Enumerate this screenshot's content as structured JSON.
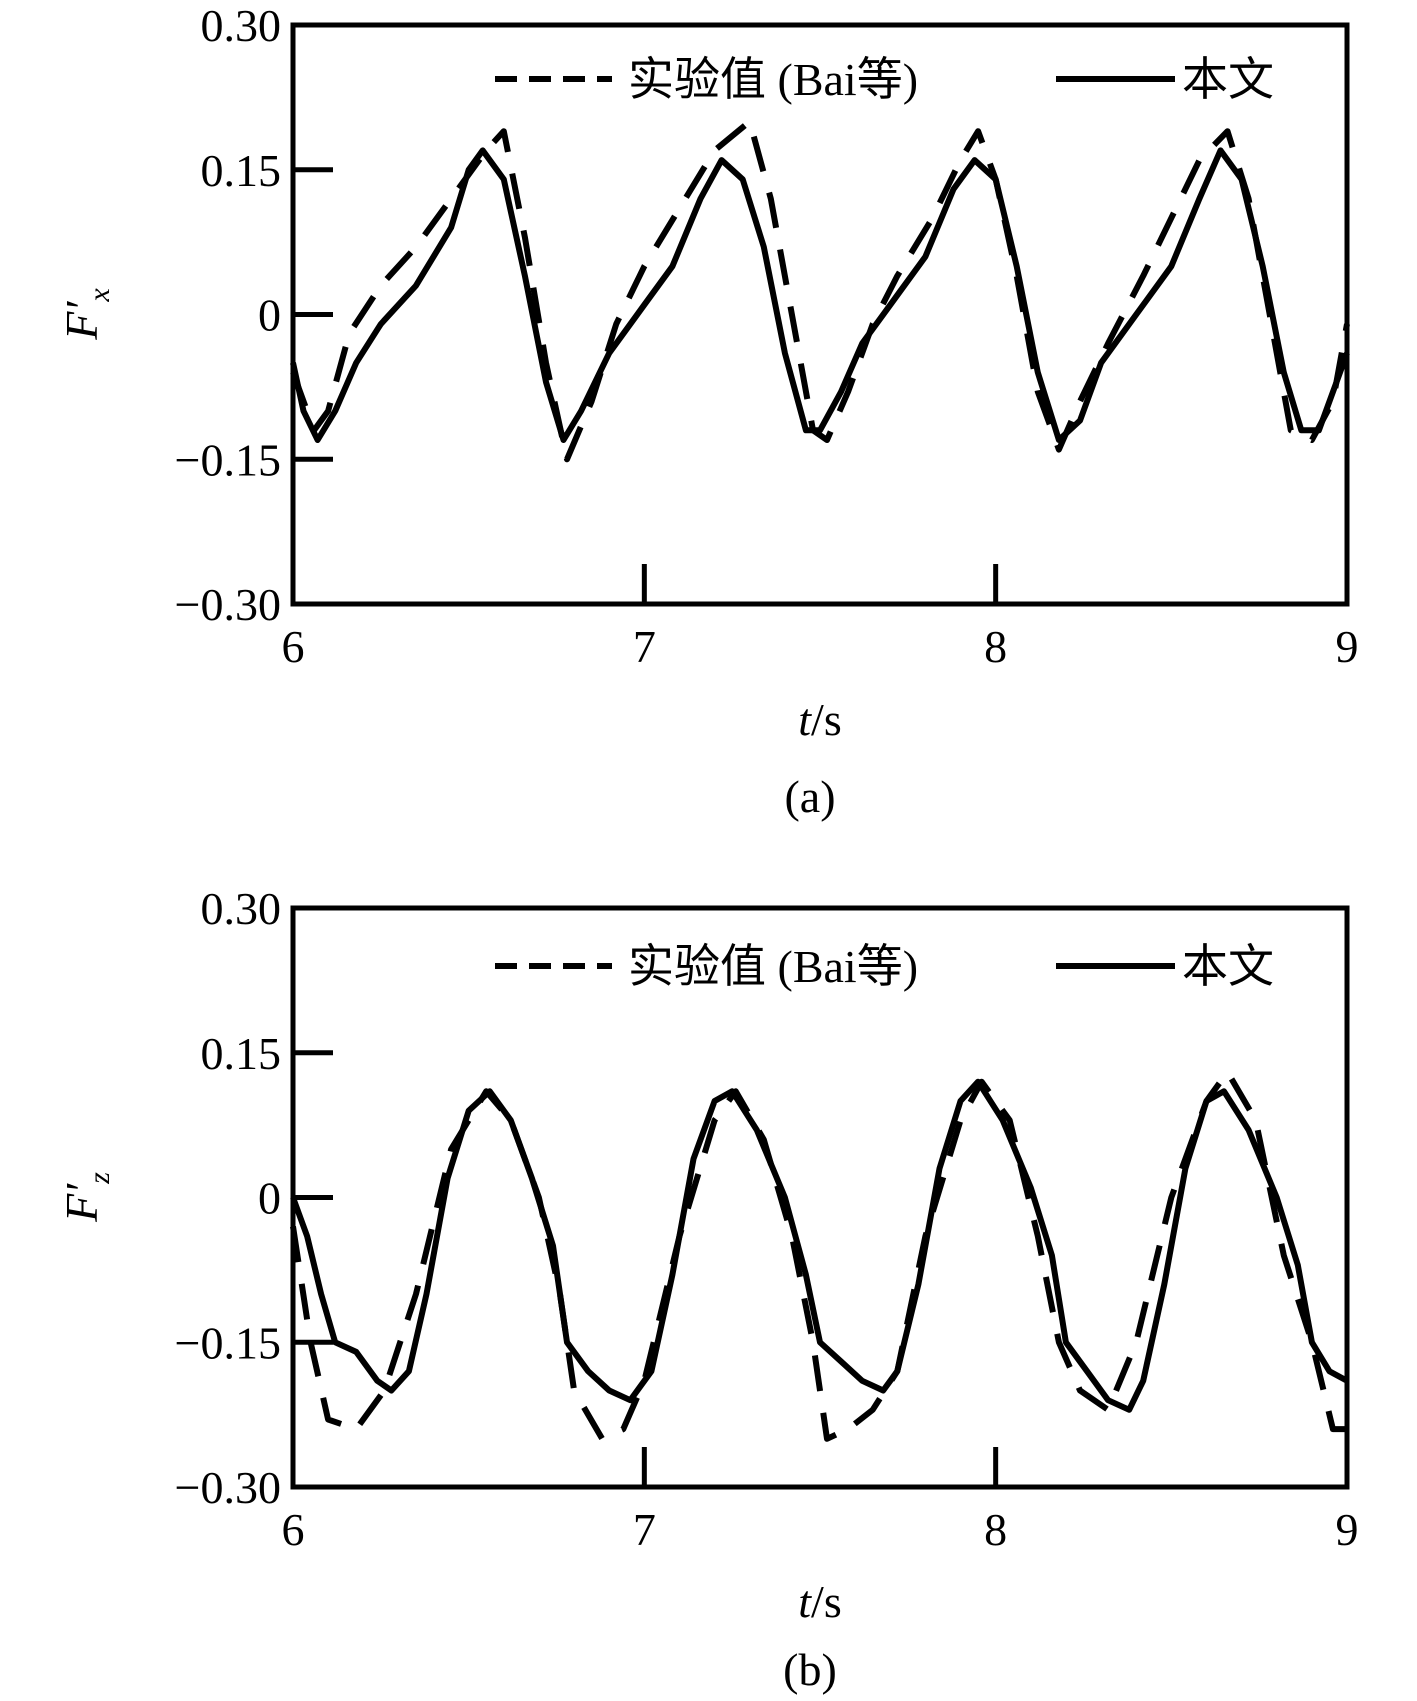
{
  "legend": {
    "experimental": "实验值 (Bai等)",
    "present": "本文"
  },
  "charts": [
    {
      "caption": "(a)",
      "ylabel_main": "F′",
      "ylabel_sub": "x",
      "xlabel_italic": "t",
      "xlabel_unit": "/s"
    },
    {
      "caption": "(b)",
      "ylabel_main": "F′",
      "ylabel_sub": "z",
      "xlabel_italic": "t",
      "xlabel_unit": "/s"
    }
  ],
  "chart_data": [
    {
      "type": "line",
      "panel": "a",
      "xlim": [
        6,
        9
      ],
      "ylim": [
        -0.3,
        0.3
      ],
      "xticks": [
        6,
        7,
        8,
        9
      ],
      "yticks": [
        -0.3,
        -0.15,
        0,
        0.15,
        0.3
      ],
      "xtick_labels": [
        "6",
        "7",
        "8",
        "9"
      ],
      "ytick_labels": [
        "−0.30",
        "−0.15",
        "0",
        "0.15",
        "0.30"
      ],
      "grid": false,
      "legend_position": "top-right",
      "series": [
        {
          "name": "实验值 (Bai等)",
          "style": "dashed",
          "points": [
            [
              6.0,
              -0.06
            ],
            [
              6.06,
              -0.12
            ],
            [
              6.1,
              -0.1
            ],
            [
              6.16,
              -0.02
            ],
            [
              6.25,
              0.03
            ],
            [
              6.35,
              0.07
            ],
            [
              6.45,
              0.12
            ],
            [
              6.55,
              0.17
            ],
            [
              6.6,
              0.19
            ],
            [
              6.66,
              0.08
            ],
            [
              6.72,
              -0.05
            ],
            [
              6.78,
              -0.15
            ],
            [
              6.85,
              -0.09
            ],
            [
              6.92,
              -0.01
            ],
            [
              7.0,
              0.05
            ],
            [
              7.1,
              0.11
            ],
            [
              7.2,
              0.17
            ],
            [
              7.3,
              0.2
            ],
            [
              7.36,
              0.12
            ],
            [
              7.42,
              0.0
            ],
            [
              7.48,
              -0.12
            ],
            [
              7.52,
              -0.13
            ],
            [
              7.58,
              -0.08
            ],
            [
              7.65,
              -0.01
            ],
            [
              7.72,
              0.04
            ],
            [
              7.82,
              0.1
            ],
            [
              7.9,
              0.16
            ],
            [
              7.95,
              0.19
            ],
            [
              8.0,
              0.14
            ],
            [
              8.06,
              0.04
            ],
            [
              8.12,
              -0.08
            ],
            [
              8.18,
              -0.14
            ],
            [
              8.24,
              -0.09
            ],
            [
              8.32,
              -0.03
            ],
            [
              8.42,
              0.04
            ],
            [
              8.5,
              0.1
            ],
            [
              8.58,
              0.16
            ],
            [
              8.66,
              0.19
            ],
            [
              8.72,
              0.12
            ],
            [
              8.78,
              0.0
            ],
            [
              8.84,
              -0.12
            ],
            [
              8.9,
              -0.13
            ],
            [
              8.96,
              -0.09
            ],
            [
              9.0,
              -0.01
            ]
          ]
        },
        {
          "name": "本文",
          "style": "solid",
          "points": [
            [
              6.0,
              -0.05
            ],
            [
              6.03,
              -0.1
            ],
            [
              6.07,
              -0.13
            ],
            [
              6.12,
              -0.1
            ],
            [
              6.18,
              -0.05
            ],
            [
              6.25,
              -0.01
            ],
            [
              6.35,
              0.03
            ],
            [
              6.45,
              0.09
            ],
            [
              6.5,
              0.15
            ],
            [
              6.54,
              0.17
            ],
            [
              6.6,
              0.14
            ],
            [
              6.66,
              0.04
            ],
            [
              6.72,
              -0.07
            ],
            [
              6.77,
              -0.13
            ],
            [
              6.82,
              -0.1
            ],
            [
              6.9,
              -0.04
            ],
            [
              7.0,
              0.01
            ],
            [
              7.08,
              0.05
            ],
            [
              7.16,
              0.12
            ],
            [
              7.22,
              0.16
            ],
            [
              7.28,
              0.14
            ],
            [
              7.34,
              0.07
            ],
            [
              7.4,
              -0.04
            ],
            [
              7.46,
              -0.12
            ],
            [
              7.5,
              -0.12
            ],
            [
              7.56,
              -0.08
            ],
            [
              7.62,
              -0.03
            ],
            [
              7.72,
              0.02
            ],
            [
              7.8,
              0.06
            ],
            [
              7.88,
              0.13
            ],
            [
              7.94,
              0.16
            ],
            [
              8.0,
              0.14
            ],
            [
              8.06,
              0.05
            ],
            [
              8.12,
              -0.06
            ],
            [
              8.18,
              -0.13
            ],
            [
              8.24,
              -0.11
            ],
            [
              8.3,
              -0.05
            ],
            [
              8.4,
              0.0
            ],
            [
              8.5,
              0.05
            ],
            [
              8.58,
              0.12
            ],
            [
              8.64,
              0.17
            ],
            [
              8.7,
              0.14
            ],
            [
              8.76,
              0.05
            ],
            [
              8.82,
              -0.06
            ],
            [
              8.87,
              -0.12
            ],
            [
              8.92,
              -0.12
            ],
            [
              8.97,
              -0.07
            ],
            [
              9.0,
              -0.04
            ]
          ]
        }
      ]
    },
    {
      "type": "line",
      "panel": "b",
      "xlim": [
        6,
        9
      ],
      "ylim": [
        -0.3,
        0.3
      ],
      "xticks": [
        6,
        7,
        8,
        9
      ],
      "yticks": [
        -0.3,
        -0.15,
        0,
        0.15,
        0.3
      ],
      "xtick_labels": [
        "6",
        "7",
        "8",
        "9"
      ],
      "ytick_labels": [
        "−0.30",
        "−0.15",
        "0",
        "0.15",
        "0.30"
      ],
      "grid": false,
      "legend_position": "top-right",
      "series": [
        {
          "name": "实验值 (Bai等)",
          "style": "dashed",
          "points": [
            [
              6.0,
              -0.03
            ],
            [
              6.05,
              -0.15
            ],
            [
              6.1,
              -0.23
            ],
            [
              6.18,
              -0.24
            ],
            [
              6.26,
              -0.2
            ],
            [
              6.35,
              -0.1
            ],
            [
              6.45,
              0.05
            ],
            [
              6.55,
              0.11
            ],
            [
              6.62,
              0.08
            ],
            [
              6.7,
              0.0
            ],
            [
              6.76,
              -0.1
            ],
            [
              6.8,
              -0.2
            ],
            [
              6.88,
              -0.25
            ],
            [
              6.94,
              -0.24
            ],
            [
              7.0,
              -0.19
            ],
            [
              7.1,
              -0.04
            ],
            [
              7.2,
              0.08
            ],
            [
              7.26,
              0.11
            ],
            [
              7.34,
              0.06
            ],
            [
              7.42,
              -0.04
            ],
            [
              7.48,
              -0.15
            ],
            [
              7.52,
              -0.25
            ],
            [
              7.58,
              -0.24
            ],
            [
              7.65,
              -0.22
            ],
            [
              7.72,
              -0.18
            ],
            [
              7.8,
              -0.04
            ],
            [
              7.9,
              0.08
            ],
            [
              7.96,
              0.12
            ],
            [
              8.04,
              0.08
            ],
            [
              8.12,
              -0.04
            ],
            [
              8.18,
              -0.15
            ],
            [
              8.24,
              -0.2
            ],
            [
              8.32,
              -0.22
            ],
            [
              8.4,
              -0.15
            ],
            [
              8.5,
              0.0
            ],
            [
              8.6,
              0.1
            ],
            [
              8.66,
              0.13
            ],
            [
              8.74,
              0.08
            ],
            [
              8.82,
              -0.06
            ],
            [
              8.9,
              -0.15
            ],
            [
              8.96,
              -0.24
            ],
            [
              9.0,
              -0.24
            ]
          ]
        },
        {
          "name": "本文",
          "style": "solid",
          "points": [
            [
              6.0,
              0.0
            ],
            [
              6.04,
              -0.04
            ],
            [
              6.08,
              -0.1
            ],
            [
              6.12,
              -0.15
            ],
            [
              6.18,
              -0.16
            ],
            [
              6.24,
              -0.19
            ],
            [
              6.28,
              -0.2
            ],
            [
              6.33,
              -0.18
            ],
            [
              6.38,
              -0.1
            ],
            [
              6.44,
              0.02
            ],
            [
              6.5,
              0.09
            ],
            [
              6.56,
              0.11
            ],
            [
              6.62,
              0.08
            ],
            [
              6.68,
              0.02
            ],
            [
              6.74,
              -0.05
            ],
            [
              6.78,
              -0.15
            ],
            [
              6.84,
              -0.18
            ],
            [
              6.9,
              -0.2
            ],
            [
              6.96,
              -0.21
            ],
            [
              7.02,
              -0.18
            ],
            [
              7.08,
              -0.08
            ],
            [
              7.14,
              0.04
            ],
            [
              7.2,
              0.1
            ],
            [
              7.25,
              0.11
            ],
            [
              7.32,
              0.07
            ],
            [
              7.4,
              0.0
            ],
            [
              7.46,
              -0.08
            ],
            [
              7.5,
              -0.15
            ],
            [
              7.56,
              -0.17
            ],
            [
              7.62,
              -0.19
            ],
            [
              7.68,
              -0.2
            ],
            [
              7.72,
              -0.18
            ],
            [
              7.78,
              -0.09
            ],
            [
              7.84,
              0.03
            ],
            [
              7.9,
              0.1
            ],
            [
              7.95,
              0.12
            ],
            [
              8.02,
              0.08
            ],
            [
              8.1,
              0.01
            ],
            [
              8.16,
              -0.06
            ],
            [
              8.2,
              -0.15
            ],
            [
              8.26,
              -0.18
            ],
            [
              8.32,
              -0.21
            ],
            [
              8.38,
              -0.22
            ],
            [
              8.42,
              -0.19
            ],
            [
              8.48,
              -0.09
            ],
            [
              8.54,
              0.03
            ],
            [
              8.6,
              0.1
            ],
            [
              8.65,
              0.11
            ],
            [
              8.72,
              0.07
            ],
            [
              8.8,
              0.0
            ],
            [
              8.86,
              -0.07
            ],
            [
              8.9,
              -0.15
            ],
            [
              8.95,
              -0.18
            ],
            [
              9.0,
              -0.19
            ]
          ]
        }
      ]
    }
  ]
}
